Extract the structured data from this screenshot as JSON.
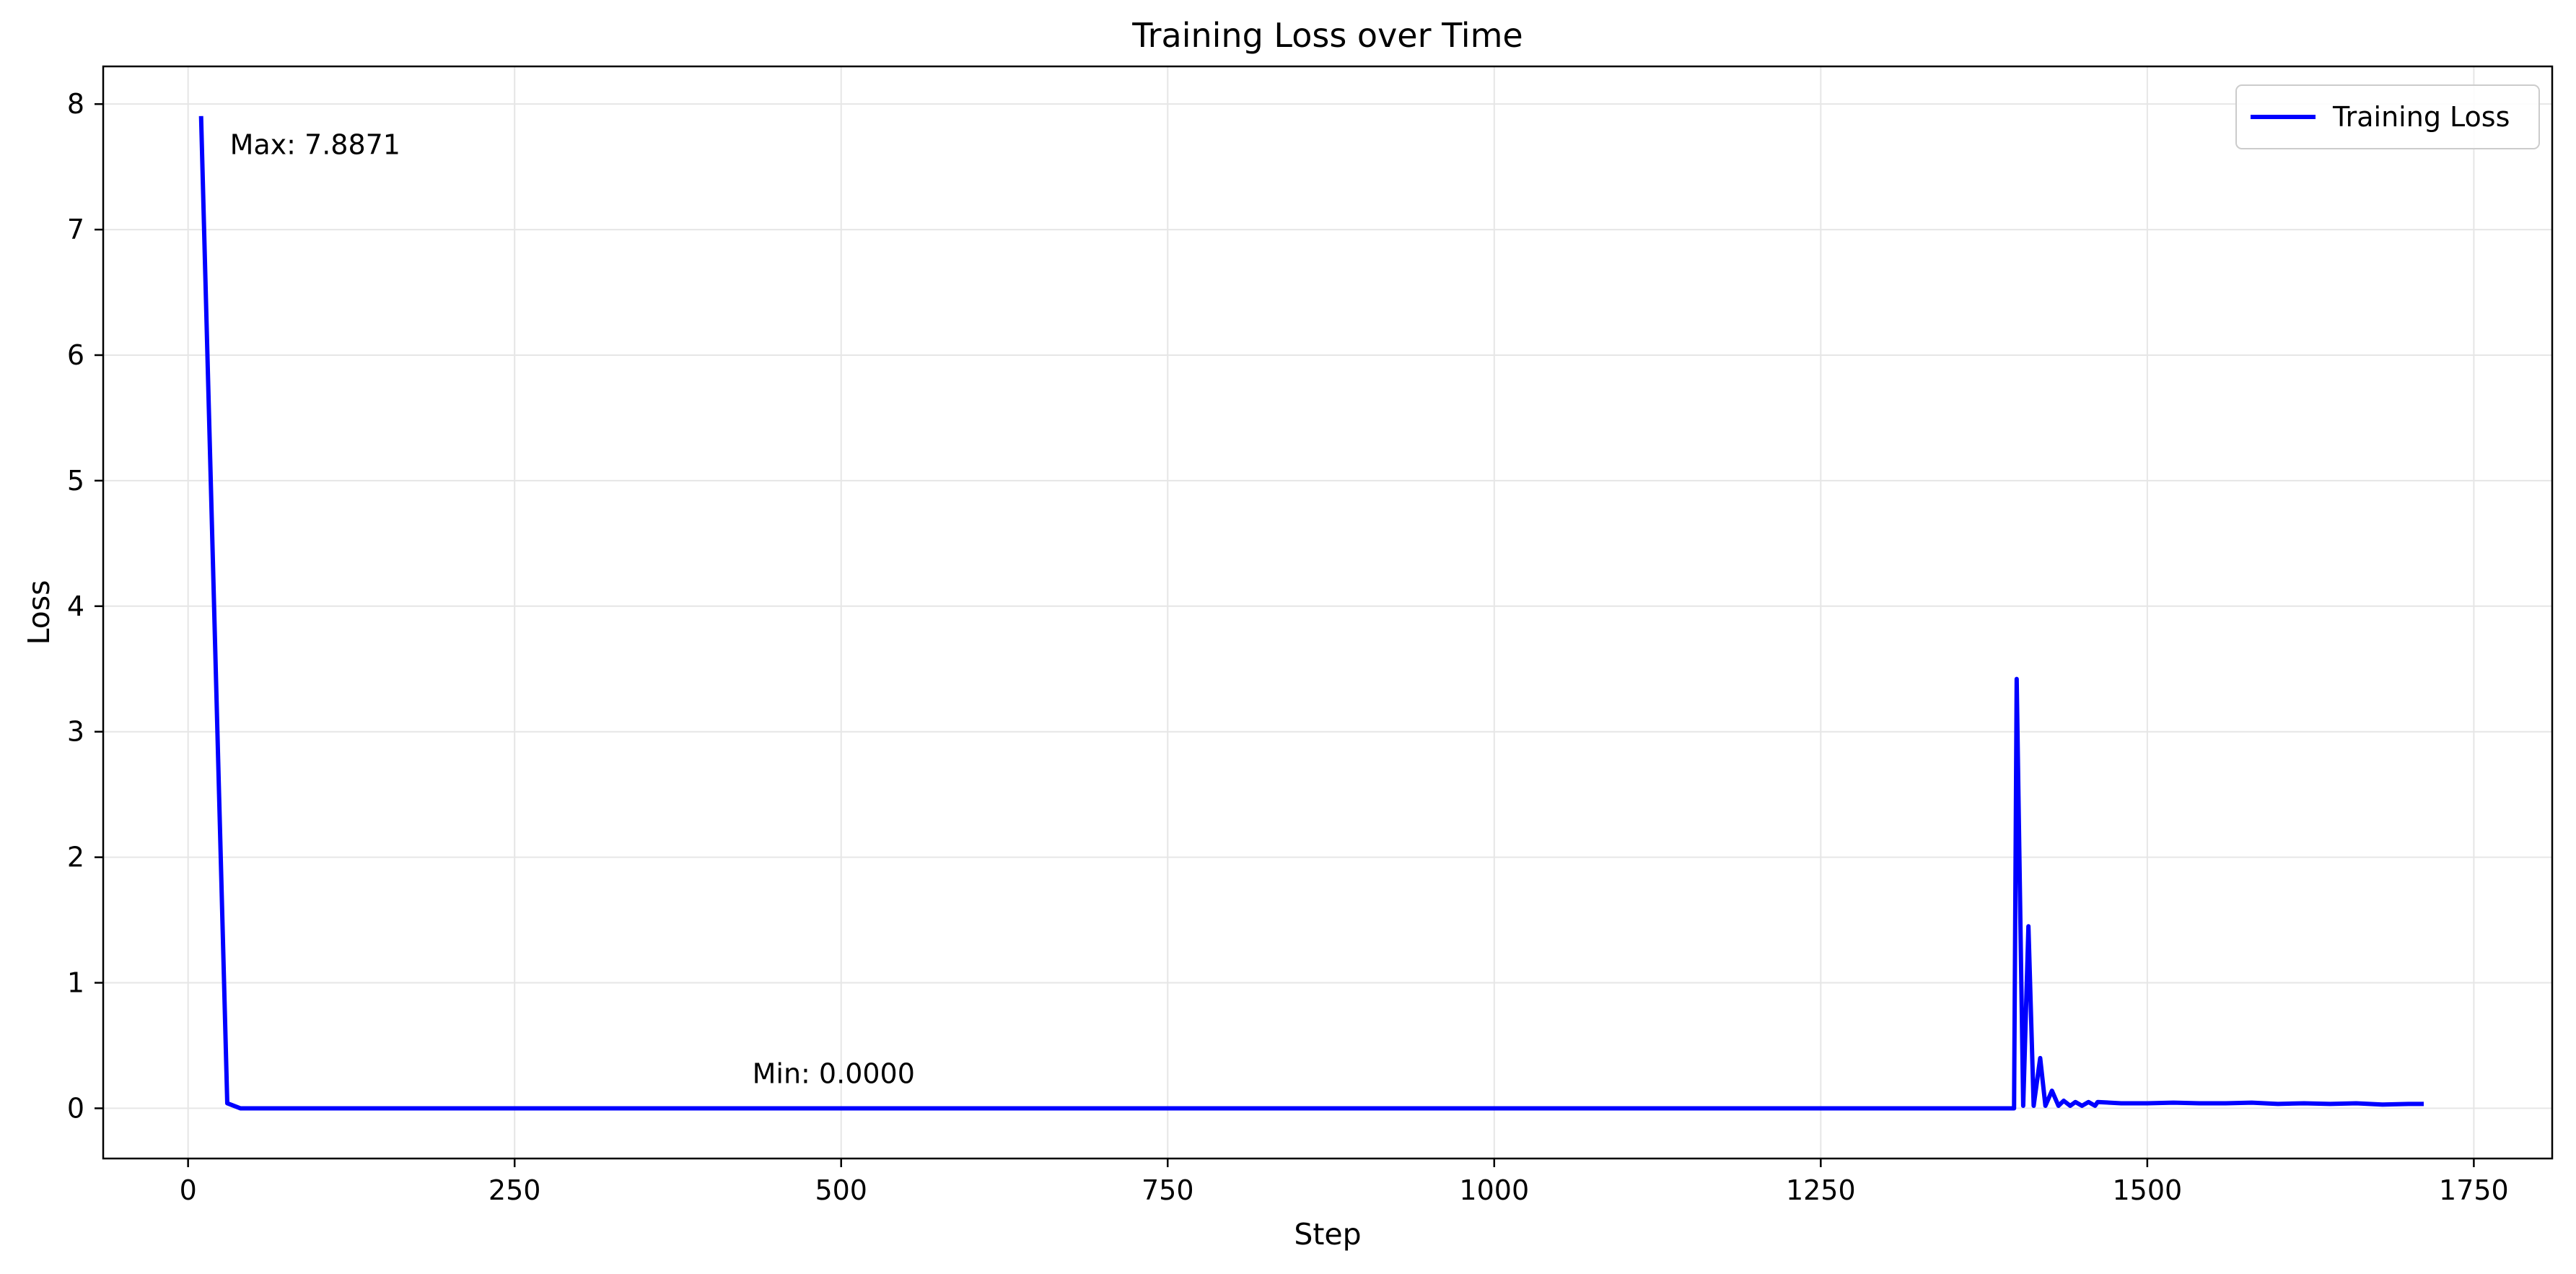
{
  "chart_data": {
    "type": "line",
    "title": "Training Loss over Time",
    "xlabel": "Step",
    "ylabel": "Loss",
    "xlim": [
      -65,
      1810
    ],
    "ylim": [
      -0.4,
      8.3
    ],
    "xticks": [
      0,
      250,
      500,
      750,
      1000,
      1250,
      1500,
      1750
    ],
    "yticks": [
      0,
      1,
      2,
      3,
      4,
      5,
      6,
      7,
      8
    ],
    "grid": true,
    "legend_position": "top-right",
    "colors": {
      "line": "#0000ff",
      "grid": "#e6e6e6",
      "axes": "#000000"
    },
    "series": [
      {
        "name": "Training Loss",
        "x": [
          10,
          30,
          40,
          1398,
          1400,
          1405,
          1409,
          1413,
          1418,
          1422,
          1427,
          1432,
          1436,
          1441,
          1445,
          1450,
          1455,
          1460,
          1462,
          1480,
          1500,
          1520,
          1540,
          1560,
          1580,
          1600,
          1620,
          1640,
          1660,
          1680,
          1700,
          1710
        ],
        "values": [
          7.8871,
          0.04,
          0.0,
          0.0,
          3.42,
          0.02,
          1.45,
          0.02,
          0.4,
          0.02,
          0.14,
          0.02,
          0.06,
          0.02,
          0.05,
          0.02,
          0.05,
          0.02,
          0.05,
          0.04,
          0.04,
          0.045,
          0.04,
          0.04,
          0.045,
          0.035,
          0.04,
          0.035,
          0.04,
          0.03,
          0.035,
          0.035
        ]
      }
    ],
    "annotations": [
      {
        "text": "Max: 7.8871",
        "x": 32,
        "y": 7.6
      },
      {
        "text": "Min: 0.0000",
        "x": 432,
        "y": 0.2
      }
    ]
  }
}
